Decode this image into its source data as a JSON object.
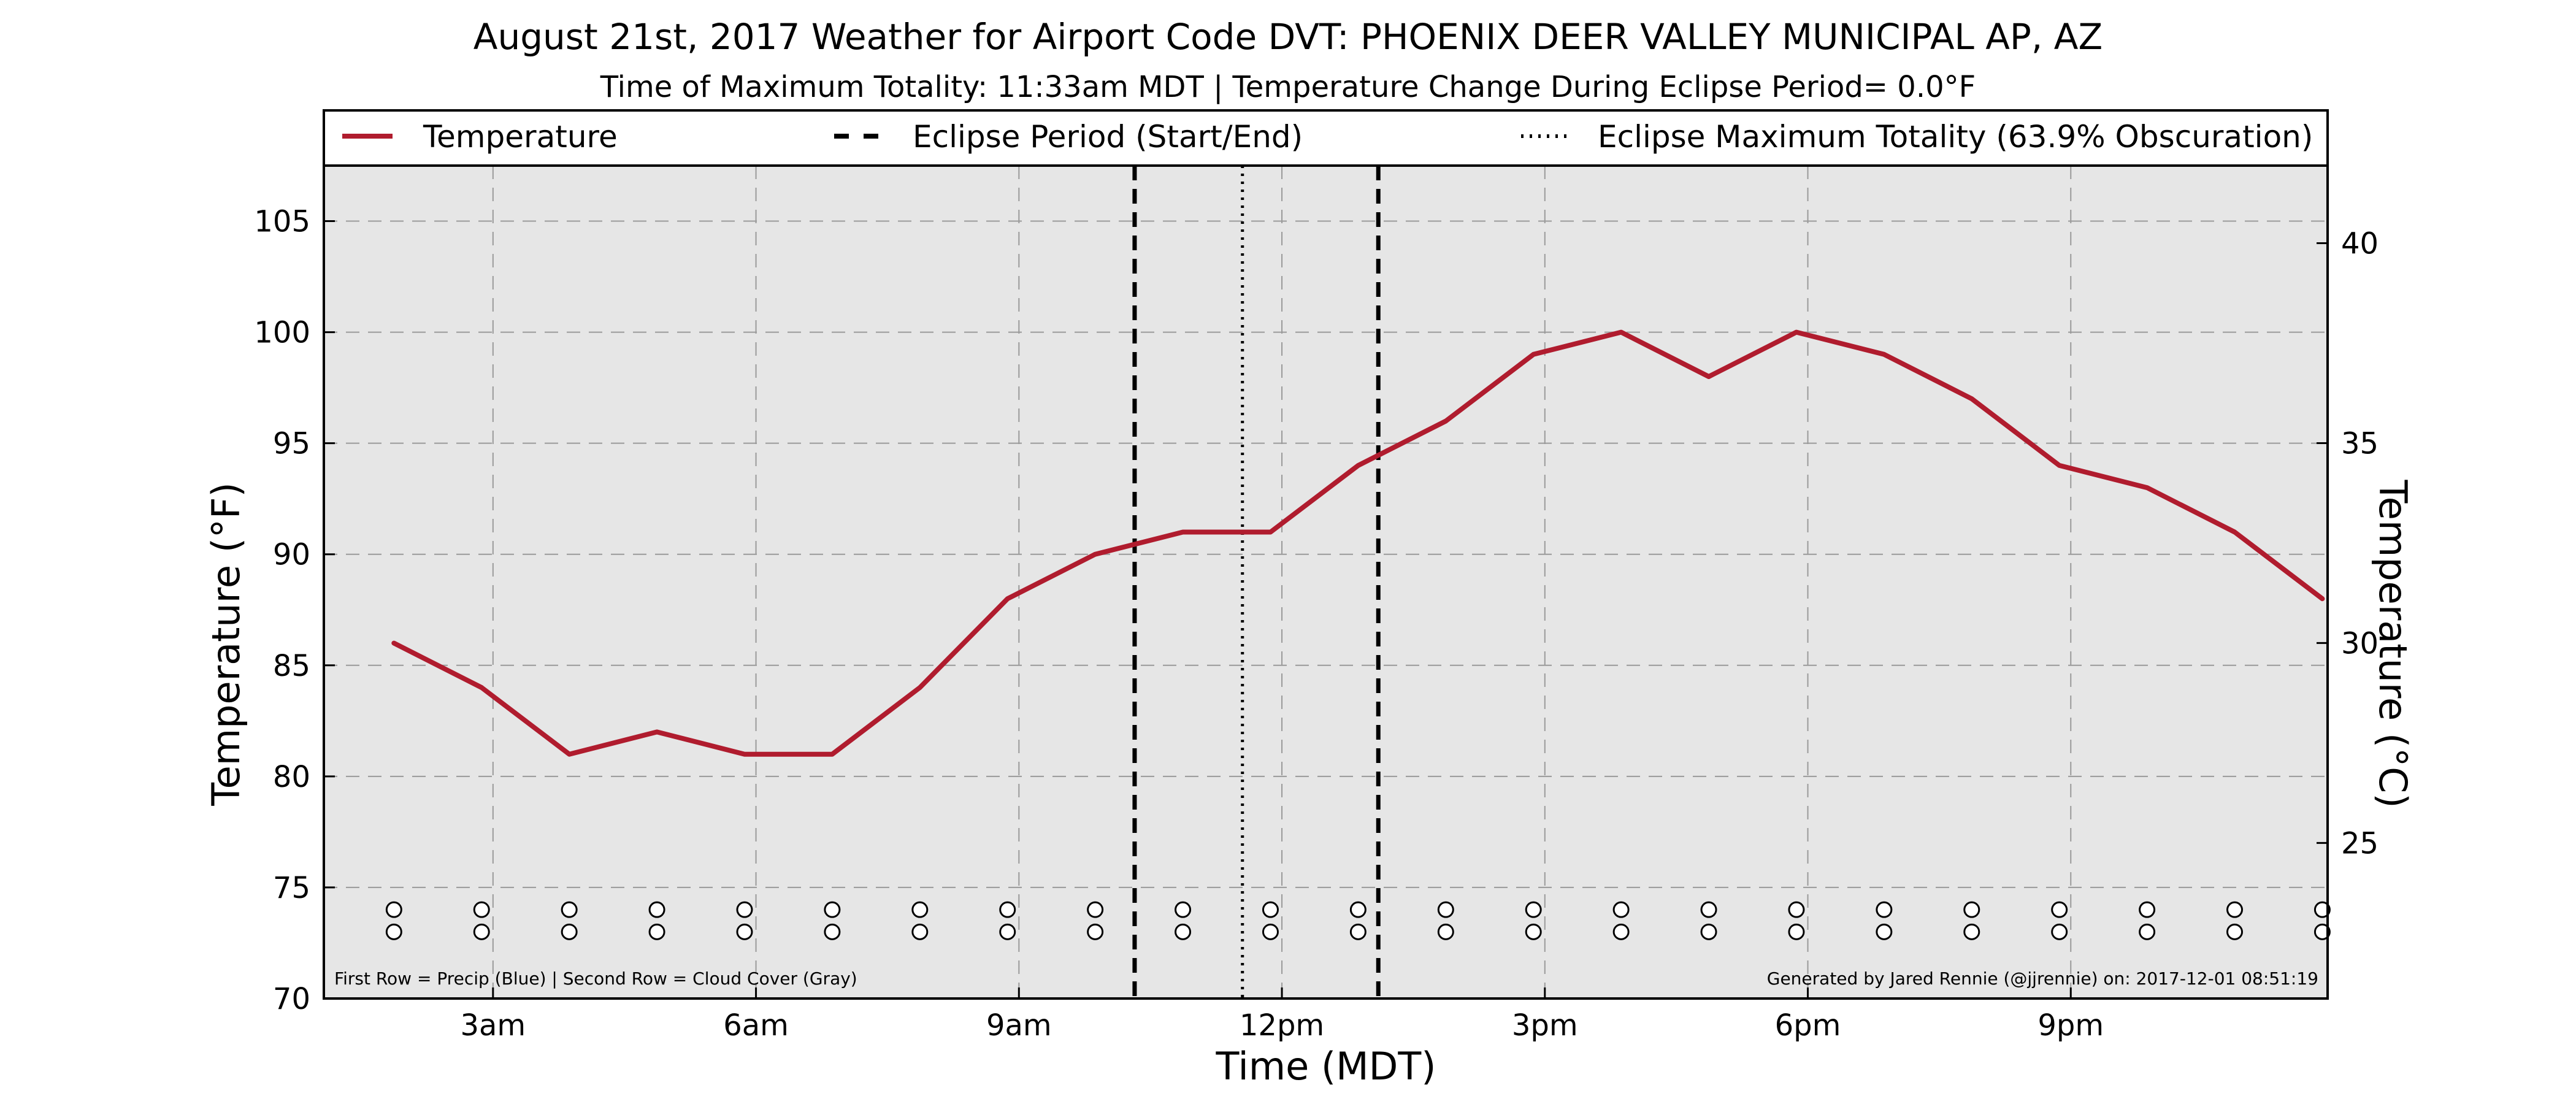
{
  "chart_data": {
    "type": "line",
    "title": "August 21st, 2017 Weather for Airport Code DVT: PHOENIX DEER VALLEY MUNICIPAL AP, AZ",
    "subtitle": "Time of Maximum Totality: 11:33am MDT | Temperature Change During Eclipse Period= 0.0°F",
    "xlabel": "Time (MDT)",
    "ylabel": "Temperature (°F)",
    "ylabel_right": "Temperature (°C)",
    "xlim": [
      1.07,
      23.93
    ],
    "ylim": [
      70,
      107.5
    ],
    "ylim_right_c": [
      21.11,
      41.94
    ],
    "x_ticks": [
      {
        "x": 3,
        "label": "3am"
      },
      {
        "x": 6,
        "label": "6am"
      },
      {
        "x": 9,
        "label": "9am"
      },
      {
        "x": 12,
        "label": "12pm"
      },
      {
        "x": 15,
        "label": "3pm"
      },
      {
        "x": 18,
        "label": "6pm"
      },
      {
        "x": 21,
        "label": "9pm"
      }
    ],
    "y_ticks": [
      70,
      75,
      80,
      85,
      90,
      95,
      100,
      105
    ],
    "y_ticks_right": [
      25,
      30,
      35,
      40
    ],
    "grid": true,
    "legend_position": "top",
    "series": [
      {
        "name": "Temperature",
        "color": "#b01c2e",
        "x": [
          1.87,
          2.87,
          3.87,
          4.87,
          5.87,
          6.87,
          7.87,
          8.87,
          9.87,
          10.87,
          11.87,
          12.87,
          13.87,
          14.87,
          15.87,
          16.87,
          17.87,
          18.87,
          19.87,
          20.87,
          21.87,
          22.87,
          23.87
        ],
        "values": [
          86,
          84,
          81,
          82,
          81,
          81,
          84,
          88,
          90,
          91,
          91,
          94,
          96,
          99,
          100,
          98,
          100,
          99,
          97,
          94,
          93,
          91,
          88
        ]
      }
    ],
    "vlines": [
      {
        "name": "Eclipse Period (Start/End)",
        "style": "dashed",
        "x": [
          10.32,
          13.1
        ]
      },
      {
        "name": "Eclipse Maximum Totality (63.9% Obscuration)",
        "style": "dotted",
        "x": [
          11.55
        ]
      }
    ],
    "marker_rows": {
      "x": [
        1.87,
        2.87,
        3.87,
        4.87,
        5.87,
        6.87,
        7.87,
        8.87,
        9.87,
        10.87,
        11.87,
        12.87,
        13.87,
        14.87,
        15.87,
        16.87,
        17.87,
        18.87,
        19.87,
        20.87,
        21.87,
        22.87,
        23.87
      ],
      "rows": [
        {
          "y": 74,
          "fill": "#ffffff"
        },
        {
          "y": 73,
          "fill": "#ffffff"
        }
      ]
    },
    "annotations": {
      "left": "First Row = Precip (Blue) | Second Row = Cloud Cover (Gray)",
      "right": "Generated by Jared Rennie (@jjrennie) on: 2017-12-01 08:51:19"
    }
  }
}
